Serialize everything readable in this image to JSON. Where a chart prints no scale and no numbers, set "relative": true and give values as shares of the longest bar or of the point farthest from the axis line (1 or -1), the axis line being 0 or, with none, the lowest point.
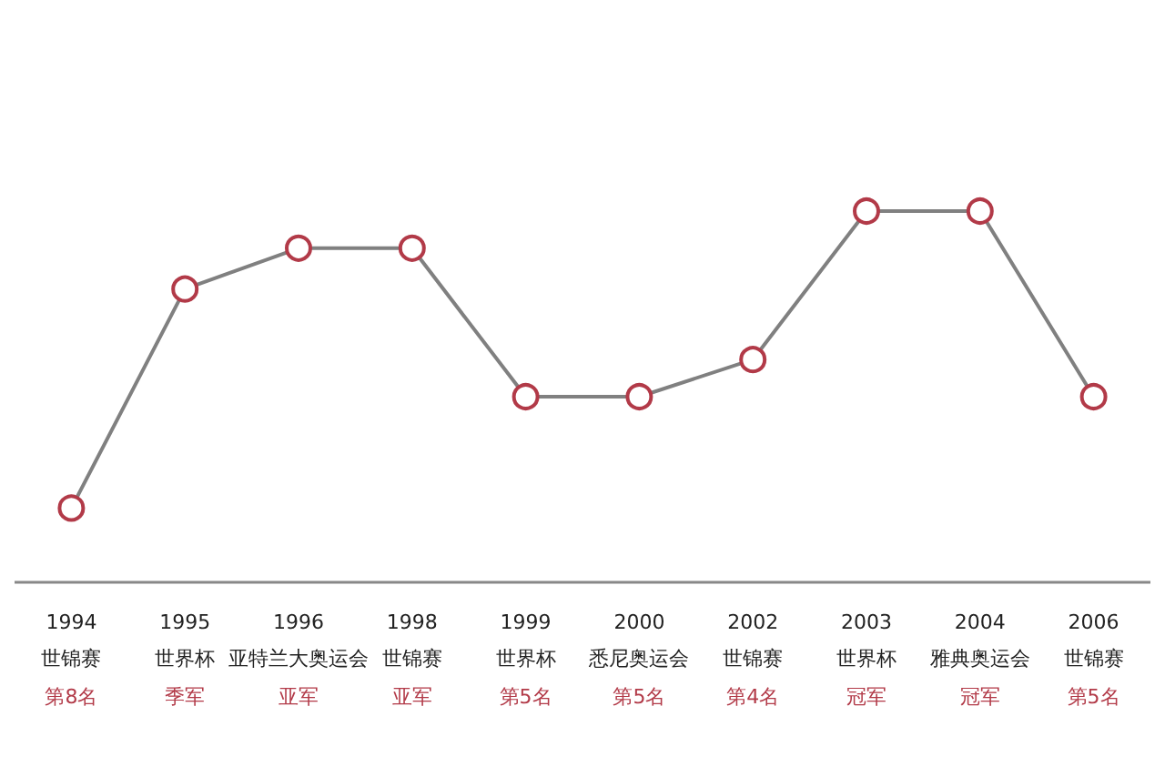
{
  "chart_data": {
    "type": "line",
    "relative": true,
    "marker": "circle",
    "grid": false,
    "categories": [
      "1994\n世锦赛",
      "1995\n世界杯",
      "1996\n亚特兰大奥运会",
      "1998\n世锦赛",
      "1999\n世界杯",
      "2000\n悉尼奥运会",
      "2002\n世锦赛",
      "2003\n世界杯",
      "2004\n雅典奥运会",
      "2006\n世锦赛"
    ],
    "series": [
      {
        "color": "#b23a48",
        "values": [
          0.2,
          0.79,
          0.9,
          0.9,
          0.5,
          0.5,
          0.6,
          1,
          1,
          0.5
        ]
      }
    ],
    "annotations": [
      "第8名",
      "季军",
      "亚军",
      "亚军",
      "第5名",
      "第5名",
      "第4名",
      "冠军",
      "冠军",
      "第5名"
    ]
  }
}
